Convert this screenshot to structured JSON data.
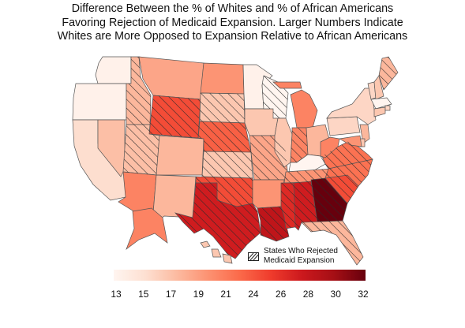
{
  "title_lines": [
    "Difference Between the % of Whites and % of African Americans",
    "Favoring Rejection of Medicaid Expansion. Larger Numbers Indicate",
    "Whites are More Opposed to Expansion Relative to African Americans"
  ],
  "legend": {
    "line1": "States Who Rejected",
    "line2": "Medicaid Expansion"
  },
  "colorbar": {
    "min": 13,
    "max": 32,
    "ticks": [
      "13",
      "15",
      "17",
      "19",
      "21",
      "24",
      "26",
      "28",
      "30",
      "32"
    ],
    "colors": [
      "#fff5f0",
      "#fde0d2",
      "#fcbba1",
      "#fc9272",
      "#fb6a4a",
      "#ef3b2c",
      "#cb181d",
      "#a50f15",
      "#67000d"
    ]
  },
  "states": [
    {
      "name": "WA",
      "value": 13.5,
      "rejected": false
    },
    {
      "name": "OR",
      "value": 13.5,
      "rejected": false
    },
    {
      "name": "CA",
      "value": 15.5,
      "rejected": false
    },
    {
      "name": "NV",
      "value": 17.5,
      "rejected": false
    },
    {
      "name": "ID",
      "value": 18,
      "rejected": true
    },
    {
      "name": "MT",
      "value": 19,
      "rejected": false
    },
    {
      "name": "WY",
      "value": 24,
      "rejected": true
    },
    {
      "name": "UT",
      "value": 17.5,
      "rejected": true
    },
    {
      "name": "AZ",
      "value": 21,
      "rejected": false
    },
    {
      "name": "CO",
      "value": 18,
      "rejected": false
    },
    {
      "name": "NM",
      "value": 18,
      "rejected": false
    },
    {
      "name": "ND",
      "value": 20,
      "rejected": false
    },
    {
      "name": "SD",
      "value": 17,
      "rejected": true
    },
    {
      "name": "NE",
      "value": 23,
      "rejected": true
    },
    {
      "name": "KS",
      "value": 17,
      "rejected": true
    },
    {
      "name": "OK",
      "value": 24,
      "rejected": true
    },
    {
      "name": "TX",
      "value": 27,
      "rejected": true
    },
    {
      "name": "MN",
      "value": 13.5,
      "rejected": false
    },
    {
      "name": "IA",
      "value": 17,
      "rejected": false
    },
    {
      "name": "MO",
      "value": 19,
      "rejected": true
    },
    {
      "name": "AR",
      "value": 20,
      "rejected": false
    },
    {
      "name": "LA",
      "value": 28,
      "rejected": true
    },
    {
      "name": "WI",
      "value": 13,
      "rejected": true
    },
    {
      "name": "IL",
      "value": 17,
      "rejected": false
    },
    {
      "name": "MI",
      "value": 21,
      "rejected": false
    },
    {
      "name": "IN",
      "value": 21,
      "rejected": true
    },
    {
      "name": "OH",
      "value": 18,
      "rejected": false
    },
    {
      "name": "KY",
      "value": 13,
      "rejected": false
    },
    {
      "name": "TN",
      "value": 20,
      "rejected": true
    },
    {
      "name": "MS",
      "value": 26,
      "rejected": true
    },
    {
      "name": "AL",
      "value": 27,
      "rejected": true
    },
    {
      "name": "GA",
      "value": 32,
      "rejected": true
    },
    {
      "name": "FL",
      "value": 18,
      "rejected": true
    },
    {
      "name": "SC",
      "value": 24,
      "rejected": true
    },
    {
      "name": "NC",
      "value": 22,
      "rejected": true
    },
    {
      "name": "VA",
      "value": 22,
      "rejected": true
    },
    {
      "name": "WV",
      "value": 21,
      "rejected": false
    },
    {
      "name": "PA",
      "value": 16,
      "rejected": false
    },
    {
      "name": "NY",
      "value": 16,
      "rejected": false
    },
    {
      "name": "VT",
      "value": 16,
      "rejected": false
    },
    {
      "name": "NH",
      "value": 17,
      "rejected": false
    },
    {
      "name": "ME",
      "value": 18,
      "rejected": true
    },
    {
      "name": "MA",
      "value": 13,
      "rejected": false
    },
    {
      "name": "CT",
      "value": 17,
      "rejected": false
    },
    {
      "name": "RI",
      "value": 16,
      "rejected": false
    },
    {
      "name": "NJ",
      "value": 18,
      "rejected": false
    },
    {
      "name": "DE",
      "value": 17,
      "rejected": false
    },
    {
      "name": "MD",
      "value": 20,
      "rejected": false
    },
    {
      "name": "AK",
      "value": 21,
      "rejected": false
    },
    {
      "name": "HI",
      "value": 17,
      "rejected": false
    }
  ]
}
